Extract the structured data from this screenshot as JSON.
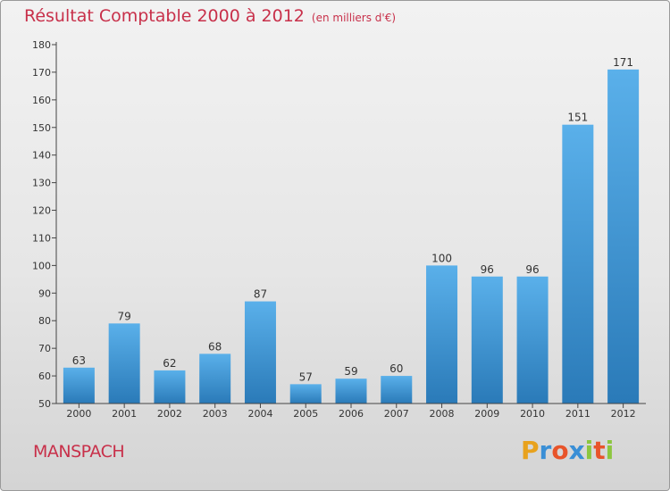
{
  "chart_data": {
    "type": "bar",
    "title": "Résultat Comptable 2000 à 2012",
    "unit_label": "(en milliers d'€)",
    "categories": [
      "2000",
      "2001",
      "2002",
      "2003",
      "2004",
      "2005",
      "2006",
      "2007",
      "2008",
      "2009",
      "2010",
      "2011",
      "2012"
    ],
    "values": [
      63,
      79,
      62,
      68,
      87,
      57,
      59,
      60,
      100,
      96,
      96,
      151,
      171
    ],
    "ylim": [
      50,
      180
    ],
    "yticks": [
      50,
      60,
      70,
      80,
      90,
      100,
      110,
      120,
      130,
      140,
      150,
      160,
      170,
      180
    ],
    "xlabel": "",
    "ylabel": "",
    "grid": false
  },
  "commune": "MANSPACH",
  "logo": {
    "letters": [
      "P",
      "r",
      "o",
      "x",
      "i",
      "t",
      "i"
    ],
    "colors": [
      "#e8a21d",
      "#3a8fd6",
      "#e8542a",
      "#3a8fd6",
      "#8cc63f",
      "#e8542a",
      "#8cc63f"
    ]
  },
  "colors": {
    "title": "#c8304a",
    "bar_top": "#5ab0ea",
    "bar_bottom": "#2a7ab8"
  }
}
